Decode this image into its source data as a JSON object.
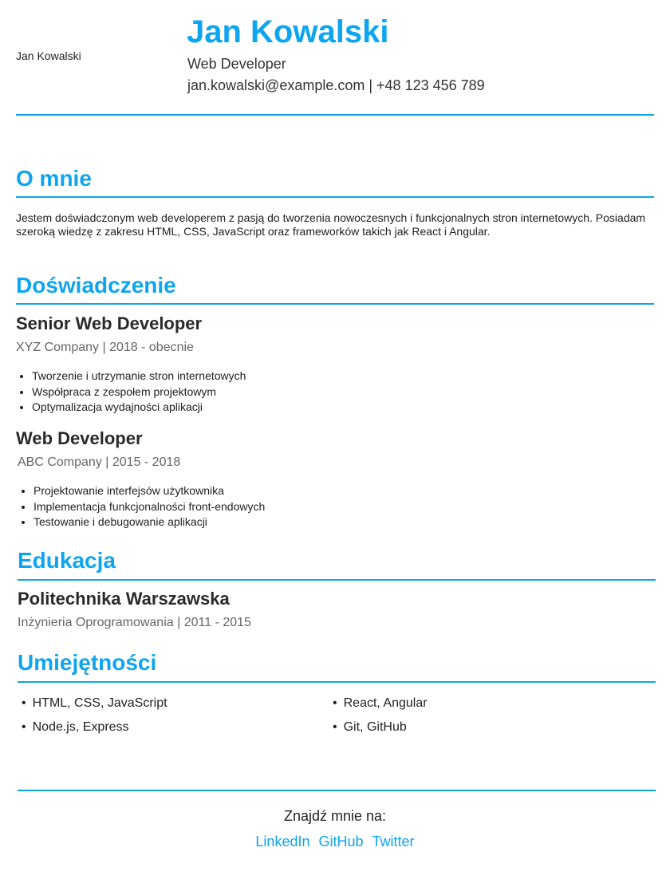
{
  "header": {
    "photo_alt": "Jan Kowalski",
    "name": "Jan Kowalski",
    "role": "Web Developer",
    "contact": "jan.kowalski@example.com | +48 123 456 789"
  },
  "about": {
    "title": "O mnie",
    "text": "Jestem doświadczonym web developerem z pasją do tworzenia nowoczesnych i funkcjonalnych stron internetowych. Posiadam szeroką wiedzę z zakresu HTML, CSS, JavaScript oraz frameworków takich jak React i Angular."
  },
  "experience": {
    "title": "Doświadczenie",
    "jobs": [
      {
        "title": "Senior Web Developer",
        "meta": "XYZ Company | 2018 - obecnie",
        "duties": [
          "Tworzenie i utrzymanie stron internetowych",
          "Współpraca z zespołem projektowym",
          "Optymalizacja wydajności aplikacji"
        ]
      },
      {
        "title": "Web Developer",
        "meta": "ABC Company | 2015 - 2018",
        "duties": [
          "Projektowanie interfejsów użytkownika",
          "Implementacja funkcjonalności front-endowych",
          "Testowanie i debugowanie aplikacji"
        ]
      }
    ]
  },
  "education": {
    "title": "Edukacja",
    "school": "Politechnika Warszawska",
    "meta": "Inżynieria Oprogramowania | 2011 - 2015"
  },
  "skills": {
    "title": "Umiejętności",
    "items": [
      "HTML, CSS, JavaScript",
      "React, Angular",
      "Node.js, Express",
      "Git, GitHub"
    ]
  },
  "footer": {
    "find_me": "Znajdź mnie na:",
    "links": [
      "LinkedIn",
      "GitHub",
      "Twitter"
    ]
  },
  "colors": {
    "accent": "#0ea5f0",
    "text": "#333333",
    "muted": "#666666"
  }
}
